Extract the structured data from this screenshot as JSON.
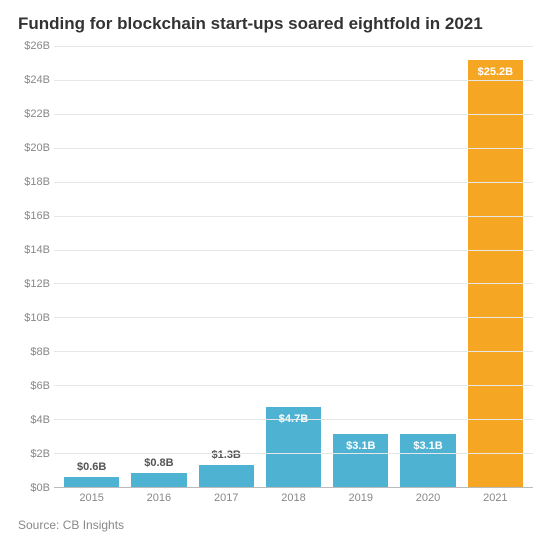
{
  "title": "Funding for blockchain start-ups soared eightfold in 2021",
  "source": "Source: CB Insights",
  "chart": {
    "type": "bar",
    "categories": [
      "2015",
      "2016",
      "2017",
      "2018",
      "2019",
      "2020",
      "2021"
    ],
    "values": [
      0.6,
      0.8,
      1.3,
      4.7,
      3.1,
      3.1,
      25.2
    ],
    "value_labels": [
      "$0.6B",
      "$0.8B",
      "$1.3B",
      "$4.7B",
      "$3.1B",
      "$3.1B",
      "$25.2B"
    ],
    "bar_colors": [
      "#4eb3d3",
      "#4eb3d3",
      "#4eb3d3",
      "#4eb3d3",
      "#4eb3d3",
      "#4eb3d3",
      "#f5a623"
    ],
    "highlight_index": 6,
    "ylim": [
      0,
      26
    ],
    "ytick_step": 2,
    "y_tick_labels": [
      "$0B",
      "$2B",
      "$4B",
      "$6B",
      "$8B",
      "$10B",
      "$12B",
      "$14B",
      "$16B",
      "$18B",
      "$20B",
      "$22B",
      "$24B",
      "$26B"
    ],
    "background_color": "#ffffff",
    "grid_color": "#e6e6e6",
    "axis_color": "#bbbbbb",
    "tick_label_color": "#888888",
    "tick_fontsize": 11,
    "title_color": "#333333",
    "title_fontsize": 17,
    "title_fontweight": 700,
    "value_label_fontsize": 11,
    "value_label_color_inside": "#ffffff",
    "value_label_color_above": "#555555",
    "bar_width": 0.82,
    "label_placement_threshold": 2.0
  }
}
